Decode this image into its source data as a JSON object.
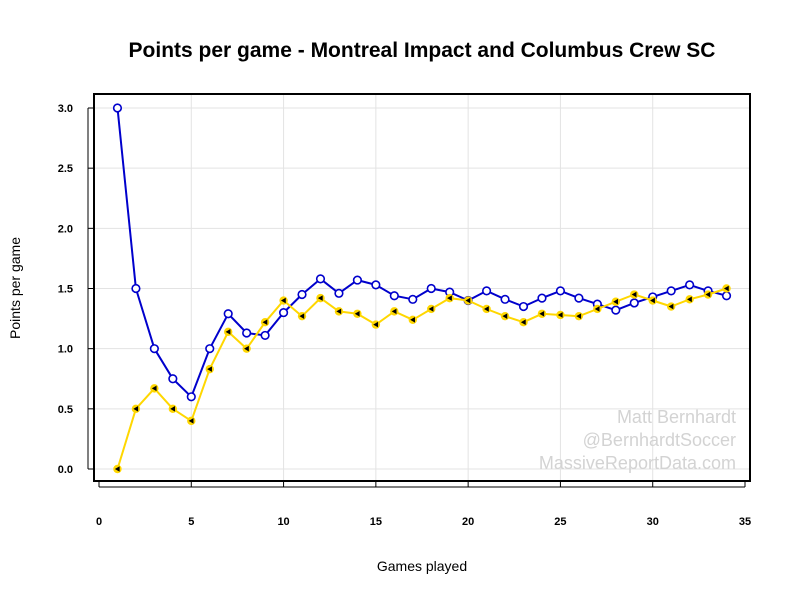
{
  "chart_data": {
    "type": "line",
    "title": "Points per game - Montreal Impact and Columbus Crew SC",
    "xlabel": "Games played",
    "ylabel": "Points per game",
    "xlim": [
      0,
      35
    ],
    "ylim": [
      0,
      3.0
    ],
    "x_ticks": [
      "0",
      "5",
      "10",
      "15",
      "20",
      "25",
      "30",
      "35"
    ],
    "y_ticks": [
      "0.0",
      "0.5",
      "1.0",
      "1.5",
      "2.0",
      "2.5",
      "3.0"
    ],
    "grid": true,
    "series": [
      {
        "color": "#0000cc",
        "marker": "open-circle",
        "x": [
          1,
          2,
          3,
          4,
          5,
          6,
          7,
          8,
          9,
          10,
          11,
          12,
          13,
          14,
          15,
          16,
          17,
          18,
          19,
          20,
          21,
          22,
          23,
          24,
          25,
          26,
          27,
          28,
          29,
          30,
          31,
          32,
          33,
          34
        ],
        "values": [
          3.0,
          1.5,
          1.0,
          0.75,
          0.6,
          1.0,
          1.29,
          1.13,
          1.11,
          1.3,
          1.45,
          1.58,
          1.46,
          1.57,
          1.53,
          1.44,
          1.41,
          1.5,
          1.47,
          1.4,
          1.48,
          1.41,
          1.35,
          1.42,
          1.48,
          1.42,
          1.37,
          1.32,
          1.38,
          1.43,
          1.48,
          1.53,
          1.48,
          1.44
        ]
      },
      {
        "color": "#ffd700",
        "marker": "black-triangle",
        "x": [
          1,
          2,
          3,
          4,
          5,
          6,
          7,
          8,
          9,
          10,
          11,
          12,
          13,
          14,
          15,
          16,
          17,
          18,
          19,
          20,
          21,
          22,
          23,
          24,
          25,
          26,
          27,
          28,
          29,
          30,
          31,
          32,
          33,
          34
        ],
        "values": [
          0.0,
          0.5,
          0.67,
          0.5,
          0.4,
          0.83,
          1.14,
          1.0,
          1.22,
          1.4,
          1.27,
          1.42,
          1.31,
          1.29,
          1.2,
          1.31,
          1.24,
          1.33,
          1.42,
          1.4,
          1.33,
          1.27,
          1.22,
          1.29,
          1.28,
          1.27,
          1.33,
          1.39,
          1.45,
          1.4,
          1.35,
          1.41,
          1.45,
          1.5
        ]
      }
    ],
    "annotations": [
      "Matt Bernhardt",
      "@BernhardtSoccer",
      "MassiveReportData.com"
    ]
  }
}
